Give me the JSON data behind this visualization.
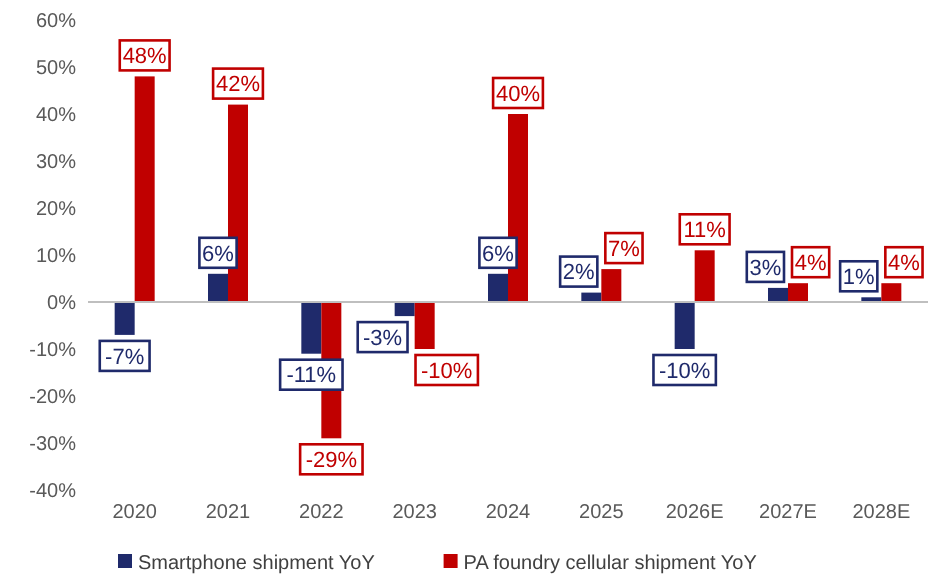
{
  "chart_data": {
    "type": "bar",
    "categories": [
      "2020",
      "2021",
      "2022",
      "2023",
      "2024",
      "2025",
      "2026E",
      "2027E",
      "2028E"
    ],
    "series": [
      {
        "name": "Smartphone shipment YoY",
        "color": "#1f2a6b",
        "values": [
          -7,
          6,
          -11,
          -3,
          6,
          2,
          -10,
          3,
          1
        ],
        "value_labels": [
          "-7%",
          "6%",
          "-11%",
          "-3%",
          "6%",
          "2%",
          "-10%",
          "3%",
          "1%"
        ]
      },
      {
        "name": "PA foundry cellular shipment YoY",
        "color": "#c00000",
        "values": [
          48,
          42,
          -29,
          -10,
          40,
          7,
          11,
          4,
          4
        ],
        "value_labels": [
          "48%",
          "42%",
          "-29%",
          "-10%",
          "40%",
          "7%",
          "11%",
          "4%",
          "4%"
        ]
      }
    ],
    "ylim": [
      -40,
      60
    ],
    "yticks": [
      {
        "value": -40,
        "label": "-40%"
      },
      {
        "value": -30,
        "label": "-30%"
      },
      {
        "value": -20,
        "label": "-20%"
      },
      {
        "value": -10,
        "label": "-10%"
      },
      {
        "value": 0,
        "label": "0%"
      },
      {
        "value": 10,
        "label": "10%"
      },
      {
        "value": 20,
        "label": "20%"
      },
      {
        "value": 30,
        "label": "30%"
      },
      {
        "value": 40,
        "label": "40%"
      },
      {
        "value": 50,
        "label": "50%"
      },
      {
        "value": 60,
        "label": "60%"
      }
    ],
    "legend": "bottom"
  }
}
